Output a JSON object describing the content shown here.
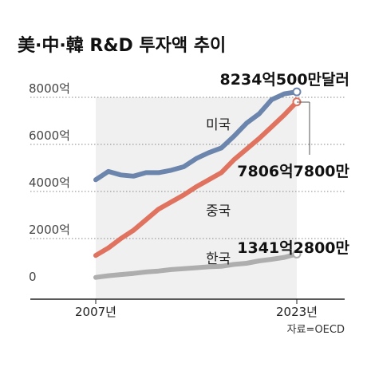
{
  "chart_data": {
    "type": "line",
    "title": "美·中·韓 R&D 투자액 추이",
    "xlabel": "",
    "ylabel": "",
    "x": [
      2007,
      2008,
      2009,
      2010,
      2011,
      2012,
      2013,
      2014,
      2015,
      2016,
      2017,
      2018,
      2019,
      2020,
      2021,
      2022,
      2023
    ],
    "x_tick_labels": [
      "2007년",
      "2023년"
    ],
    "y_tick_labels": [
      "0",
      "2000억",
      "4000억",
      "6000억",
      "8000억"
    ],
    "ylim": [
      0,
      8600
    ],
    "grid": "horizontal dotted",
    "series": [
      {
        "name": "미국",
        "color": "#6b85ad",
        "values": [
          4500,
          4850,
          4700,
          4650,
          4800,
          4800,
          4900,
          5050,
          5400,
          5650,
          5850,
          6350,
          6900,
          7300,
          7900,
          8150,
          8234.05
        ]
      },
      {
        "name": "중국",
        "color": "#e0735f",
        "values": [
          1280,
          1600,
          2000,
          2350,
          2800,
          3250,
          3550,
          3850,
          4200,
          4500,
          4800,
          5350,
          5800,
          6250,
          6750,
          7250,
          7806.78
        ]
      },
      {
        "name": "한국",
        "color": "#aeaeae",
        "values": [
          350,
          420,
          470,
          520,
          580,
          620,
          680,
          720,
          760,
          800,
          820,
          900,
          950,
          1050,
          1120,
          1200,
          1341.28
        ]
      }
    ],
    "end_labels": [
      "8234억500만달러",
      "7806억7800만",
      "1341억2800만"
    ],
    "source": "자료=OECD"
  }
}
